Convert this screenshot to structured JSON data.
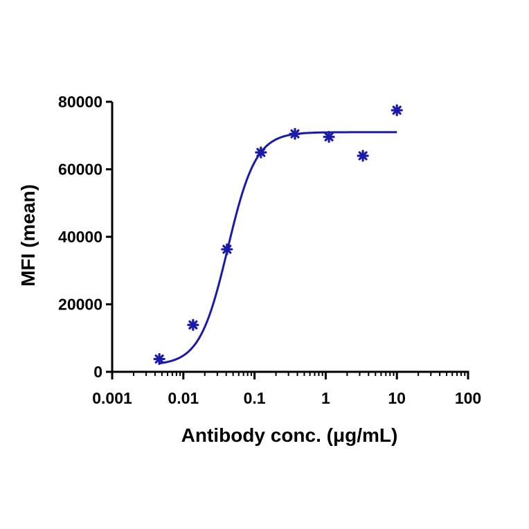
{
  "chart_data": {
    "type": "scatter",
    "title": "",
    "xlabel": "Antibody conc. (μg/mL)",
    "ylabel": "MFI (mean)",
    "x_scale": "log",
    "xlim": [
      0.001,
      100
    ],
    "ylim": [
      0,
      80000
    ],
    "x_ticks": [
      "0.001",
      "0.01",
      "0.1",
      "1",
      "10",
      "100"
    ],
    "y_ticks": [
      "0",
      "20000",
      "40000",
      "60000",
      "80000"
    ],
    "grid": false,
    "legend": "none",
    "series": [
      {
        "color": "#1a1aa8",
        "marker": "asterisk",
        "x": [
          0.0046,
          0.0137,
          0.041,
          0.123,
          0.37,
          1.11,
          3.33,
          10
        ],
        "y": [
          3800,
          13900,
          36300,
          65000,
          70500,
          69600,
          64000,
          77500
        ]
      }
    ],
    "fit_curve": {
      "model": "4PL",
      "color": "#1a1aa8",
      "x_range": [
        0.0046,
        10
      ],
      "bottom": 2000,
      "top": 71000,
      "ec50": 0.042,
      "hill": 2.2
    }
  }
}
